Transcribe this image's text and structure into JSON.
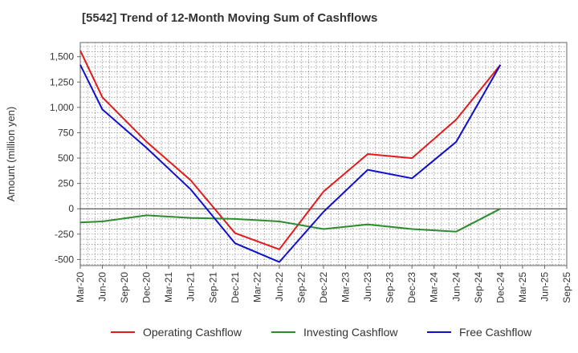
{
  "chart_data": {
    "type": "line",
    "title": "[5542]  Trend of 12-Month Moving Sum of Cashflows",
    "ylabel": "Amount (million yen)",
    "xlabel": "",
    "categories": [
      "Mar-20",
      "Jun-20",
      "Sep-20",
      "Dec-20",
      "Mar-21",
      "Jun-21",
      "Sep-21",
      "Dec-21",
      "Mar-22",
      "Jun-22",
      "Sep-22",
      "Dec-22",
      "Mar-23",
      "Jun-23",
      "Sep-23",
      "Dec-23",
      "Mar-24",
      "Jun-24",
      "Sep-24",
      "Dec-24",
      "Mar-25",
      "Jun-25",
      "Sep-25"
    ],
    "ylim": [
      -560,
      1640
    ],
    "yticks": [
      -500,
      -250,
      0,
      250,
      500,
      750,
      1000,
      1250,
      1500
    ],
    "ytick_labels": [
      "-500",
      "-250",
      "0",
      "250",
      "500",
      "750",
      "1,000",
      "1,250",
      "1,500"
    ],
    "grid": true,
    "legend_position": "bottom",
    "series": [
      {
        "name": "Operating Cashflow",
        "color": "#e31a1c",
        "values": [
          1560,
          1100,
          null,
          660,
          null,
          280,
          null,
          -240,
          null,
          -400,
          null,
          170,
          null,
          540,
          null,
          500,
          null,
          880,
          null,
          1420,
          null,
          null,
          null
        ]
      },
      {
        "name": "Investing Cashflow",
        "color": "#2e8b2e",
        "values": [
          -135,
          -125,
          null,
          -65,
          null,
          -90,
          null,
          -100,
          null,
          -125,
          null,
          -200,
          null,
          -155,
          null,
          -200,
          null,
          -225,
          null,
          0,
          null,
          null,
          null
        ]
      },
      {
        "name": "Free Cashflow",
        "color": "#1010cc",
        "values": [
          1420,
          980,
          null,
          600,
          null,
          190,
          null,
          -340,
          null,
          -525,
          null,
          -30,
          null,
          385,
          null,
          300,
          null,
          660,
          null,
          1420,
          null,
          null,
          null
        ]
      }
    ]
  }
}
